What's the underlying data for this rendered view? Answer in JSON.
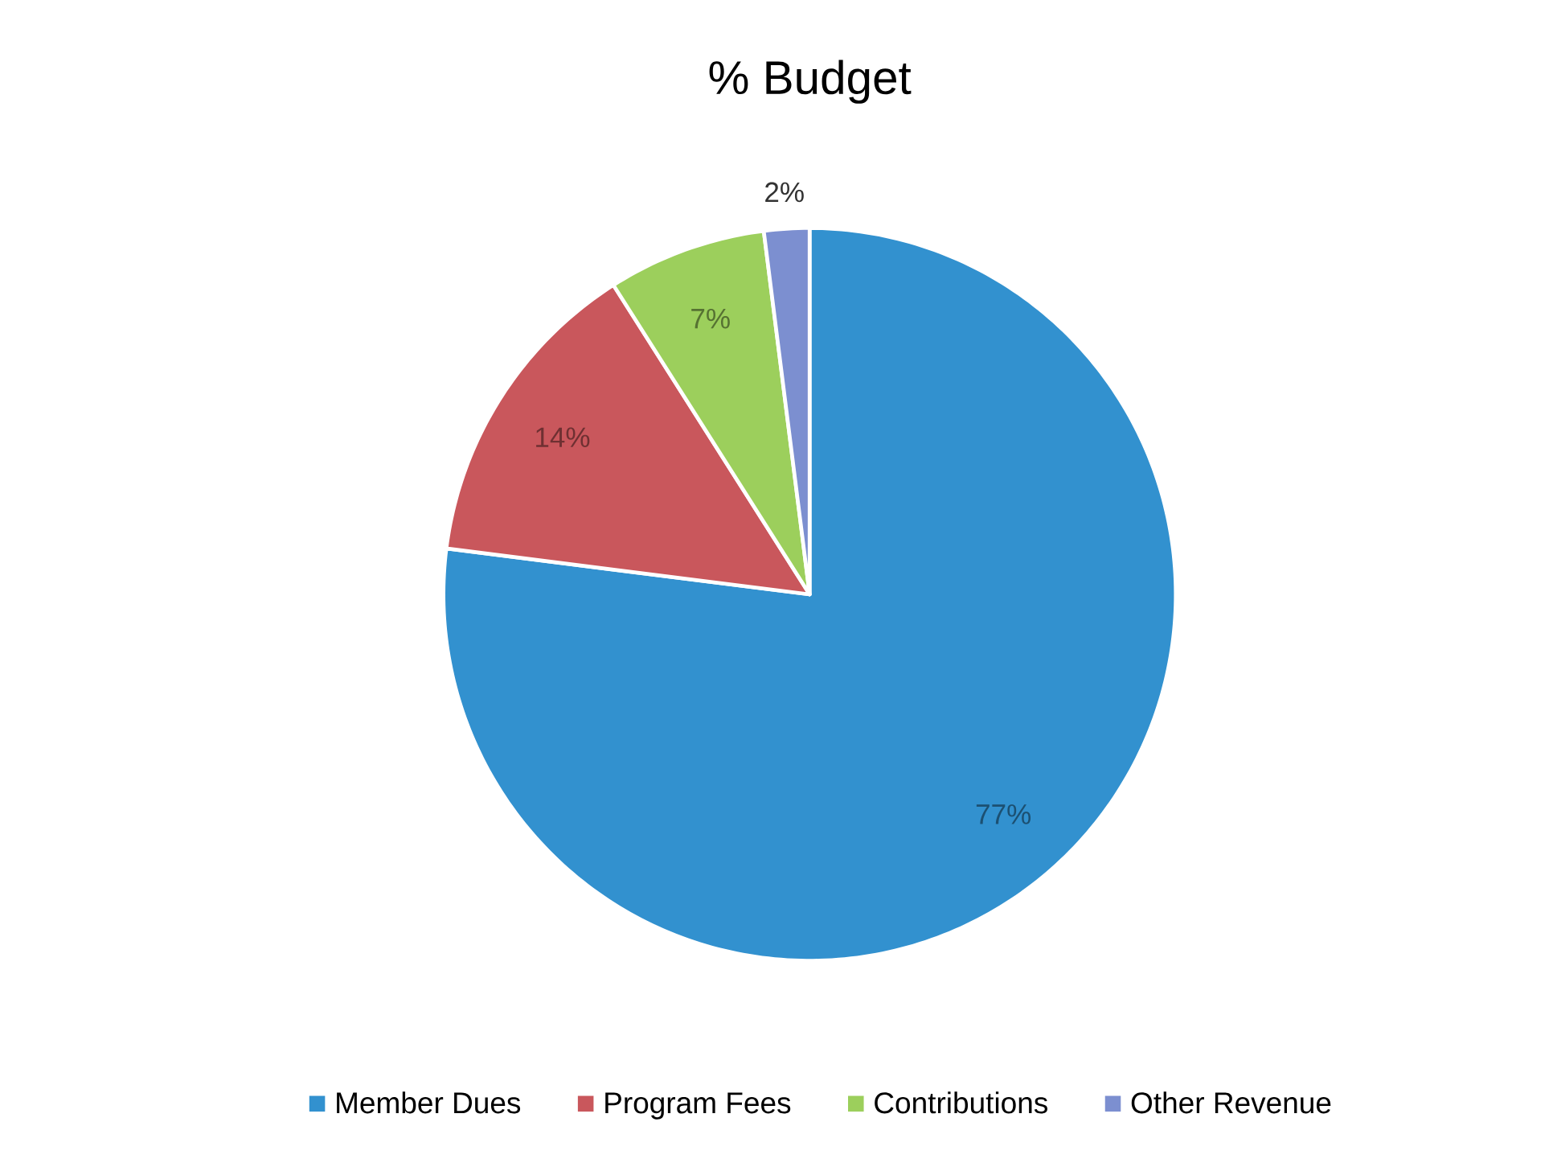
{
  "chart_data": {
    "type": "pie",
    "title": "% Budget",
    "categories": [
      "Member Dues",
      "Program Fees",
      "Contributions",
      "Other Revenue"
    ],
    "values": [
      77,
      14,
      7,
      2
    ],
    "colors": [
      "#3291cf",
      "#c9575c",
      "#9ccf5c",
      "#7c8fd0"
    ],
    "value_labels": [
      "77%",
      "14%",
      "7%",
      "2%"
    ],
    "legend": "bottom"
  }
}
